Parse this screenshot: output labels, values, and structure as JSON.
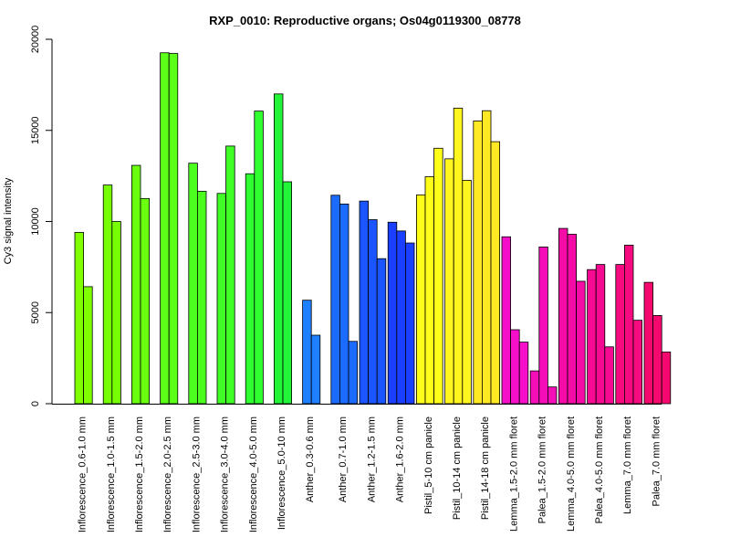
{
  "chart_data": {
    "type": "bar",
    "title": "RXP_0010: Reproductive organs; Os04g0119300_08778",
    "xlabel": "",
    "ylabel": "Cy3 signal intensity",
    "ylim": [
      0,
      20000
    ],
    "yticks": [
      0,
      5000,
      10000,
      15000,
      20000
    ],
    "grid": false,
    "groups": [
      {
        "label": "Inflorescence_0.6-1.0 mm",
        "color": "#7FFF00",
        "values": [
          9400,
          6420
        ]
      },
      {
        "label": "Inflorescence_1.0-1.5 mm",
        "color": "#76FF05",
        "values": [
          12000,
          10000
        ]
      },
      {
        "label": "Inflorescence_1.5-2.0 mm",
        "color": "#6AFF0F",
        "values": [
          13080,
          11260
        ]
      },
      {
        "label": "Inflorescence_2.0-2.5 mm",
        "color": "#5CFF17",
        "values": [
          19260,
          19220
        ]
      },
      {
        "label": "Inflorescence_2.5-3.0 mm",
        "color": "#4DFF1F",
        "values": [
          13200,
          11660
        ]
      },
      {
        "label": "Inflorescence_3.0-4.0 mm",
        "color": "#3FFF27",
        "values": [
          11540,
          14140
        ]
      },
      {
        "label": "Inflorescence_4.0-5.0 mm",
        "color": "#30FF30",
        "values": [
          12620,
          16060
        ]
      },
      {
        "label": "Inflorescence_5.0-10 mm",
        "color": "#22F538",
        "values": [
          17000,
          12180
        ]
      },
      {
        "label": "Anther_0.3-0.6 mm",
        "color": "#1E7FFF",
        "values": [
          5680,
          3760
        ]
      },
      {
        "label": "Anther_0.7-1.0 mm",
        "color": "#1C6BFF",
        "values": [
          11440,
          10960,
          3420
        ]
      },
      {
        "label": "Anther_1.2-1.5 mm",
        "color": "#1A55FF",
        "values": [
          11120,
          10100,
          7960
        ]
      },
      {
        "label": "Anther_1.6-2.0 mm",
        "color": "#1A3FFF",
        "values": [
          9960,
          9480,
          8820
        ]
      },
      {
        "label": "Pistil_5-10 cm panicle",
        "color": "#FFFF1A",
        "values": [
          11460,
          12460,
          14020
        ]
      },
      {
        "label": "Pistil_10-14 cm panicle",
        "color": "#FFF51F",
        "values": [
          13440,
          16220,
          12260
        ]
      },
      {
        "label": "Pistil_14-18 cm panicle",
        "color": "#FFE824",
        "values": [
          15520,
          16080,
          14380
        ]
      },
      {
        "label": "Lemma_1.5-2.0 mm floret",
        "color": "#F50FC8",
        "values": [
          9160,
          4060,
          3380
        ]
      },
      {
        "label": "Palea_1.5-2.0 mm floret",
        "color": "#F50DB8",
        "values": [
          1800,
          8600,
          920
        ]
      },
      {
        "label": "Lemma_4.0-5.0 mm floret",
        "color": "#F50BA5",
        "values": [
          9620,
          9300,
          6720
        ]
      },
      {
        "label": "Palea_4.0-5.0 mm floret",
        "color": "#F50A92",
        "values": [
          7360,
          7640,
          3120
        ]
      },
      {
        "label": "Lemma_7.0 mm floret",
        "color": "#F50A80",
        "values": [
          7640,
          8700,
          4580
        ]
      },
      {
        "label": "Palea_7.0 mm floret",
        "color": "#F5096E",
        "values": [
          6660,
          4840,
          2840
        ]
      }
    ]
  }
}
